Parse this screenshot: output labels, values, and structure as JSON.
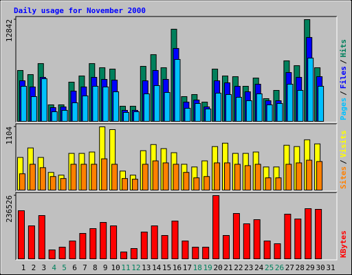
{
  "chart_data": [
    {
      "type": "bar",
      "title": "Daily usage for November 2000",
      "categories": [
        "1",
        "2",
        "3",
        "4",
        "5",
        "6",
        "7",
        "8",
        "9",
        "10",
        "11",
        "12",
        "13",
        "14",
        "15",
        "16",
        "17",
        "18",
        "19",
        "20",
        "21",
        "22",
        "23",
        "24",
        "25",
        "26",
        "27",
        "28",
        "29",
        "30",
        "31"
      ],
      "category_colors": [
        "#000000",
        "#000000",
        "#000000",
        "#00805c",
        "#00805c",
        "#000000",
        "#000000",
        "#000000",
        "#000000",
        "#000000",
        "#00805c",
        "#00805c",
        "#000000",
        "#000000",
        "#000000",
        "#000000",
        "#000000",
        "#00805c",
        "#00805c",
        "#000000",
        "#000000",
        "#000000",
        "#000000",
        "#000000",
        "#00805c",
        "#00805c",
        "#000000",
        "#000000",
        "#000000",
        "#000000",
        "#000000"
      ],
      "ylim": [
        0,
        12842
      ],
      "yticks": [
        12842
      ],
      "legend_separator": "/",
      "series": [
        {
          "name": "Hits",
          "color": "#00805c",
          "values": [
            6423,
            5902,
            7291,
            2083,
            2083,
            4948,
            5729,
            7291,
            6770,
            6597,
            1910,
            1910,
            6944,
            8420,
            6770,
            11631,
            3125,
            3385,
            2430,
            6597,
            5729,
            5642,
            4427,
            5468,
            2864,
            3906,
            7638,
            7031,
            12842,
            6770,
            0
          ]
        },
        {
          "name": "Files",
          "color": "#0000ff",
          "values": [
            5121,
            4340,
            5555,
            1736,
            1823,
            3819,
            4340,
            5555,
            5295,
            5208,
            1389,
            1389,
            5121,
            6423,
            5295,
            9201,
            2430,
            2691,
            1823,
            5121,
            4861,
            4427,
            3732,
            4687,
            2604,
            2604,
            6163,
            5555,
            10590,
            5642,
            0
          ]
        },
        {
          "name": "Pages",
          "color": "#00c0ff",
          "values": [
            4427,
            3125,
            5382,
            1215,
            1389,
            2344,
            3212,
            4427,
            4340,
            3732,
            1128,
            1215,
            3472,
            4514,
            3646,
            7812,
            1649,
            2257,
            1562,
            3559,
            3385,
            3038,
            2604,
            3472,
            2083,
            2257,
            4687,
            3906,
            7986,
            4427,
            0
          ]
        }
      ]
    },
    {
      "type": "bar",
      "ylim": [
        0,
        1104
      ],
      "yticks": [
        1104
      ],
      "legend_separator": "/",
      "series": [
        {
          "name": "Visits",
          "color": "#ffff00",
          "values": [
            570,
            736,
            570,
            309,
            261,
            641,
            641,
            665,
            1104,
            1056,
            332,
            261,
            688,
            795,
            724,
            653,
            451,
            404,
            510,
            760,
            819,
            641,
            641,
            665,
            404,
            404,
            783,
            760,
            878,
            807,
            0
          ]
        },
        {
          "name": "Sites",
          "color": "#ff8000",
          "values": [
            285,
            451,
            392,
            237,
            202,
            451,
            451,
            451,
            546,
            451,
            202,
            190,
            451,
            510,
            475,
            451,
            309,
            214,
            237,
            475,
            475,
            451,
            427,
            451,
            214,
            214,
            451,
            475,
            522,
            499,
            0
          ]
        }
      ]
    },
    {
      "type": "bar",
      "ylim": [
        0,
        236526
      ],
      "yticks": [
        236526
      ],
      "series": [
        {
          "name": "KBytes",
          "color": "#ff0000",
          "values": [
            179970,
            123408,
            161973,
            33423,
            43707,
            66846,
            95127,
            113124,
            136263,
            123408,
            25710,
            38565,
            100269,
            123408,
            87414,
            141405,
            66846,
            43707,
            43707,
            236526,
            87414,
            169686,
            131121,
            146547,
            66846,
            56562,
            167115,
            149118,
            187683,
            185112,
            0
          ]
        }
      ]
    }
  ]
}
